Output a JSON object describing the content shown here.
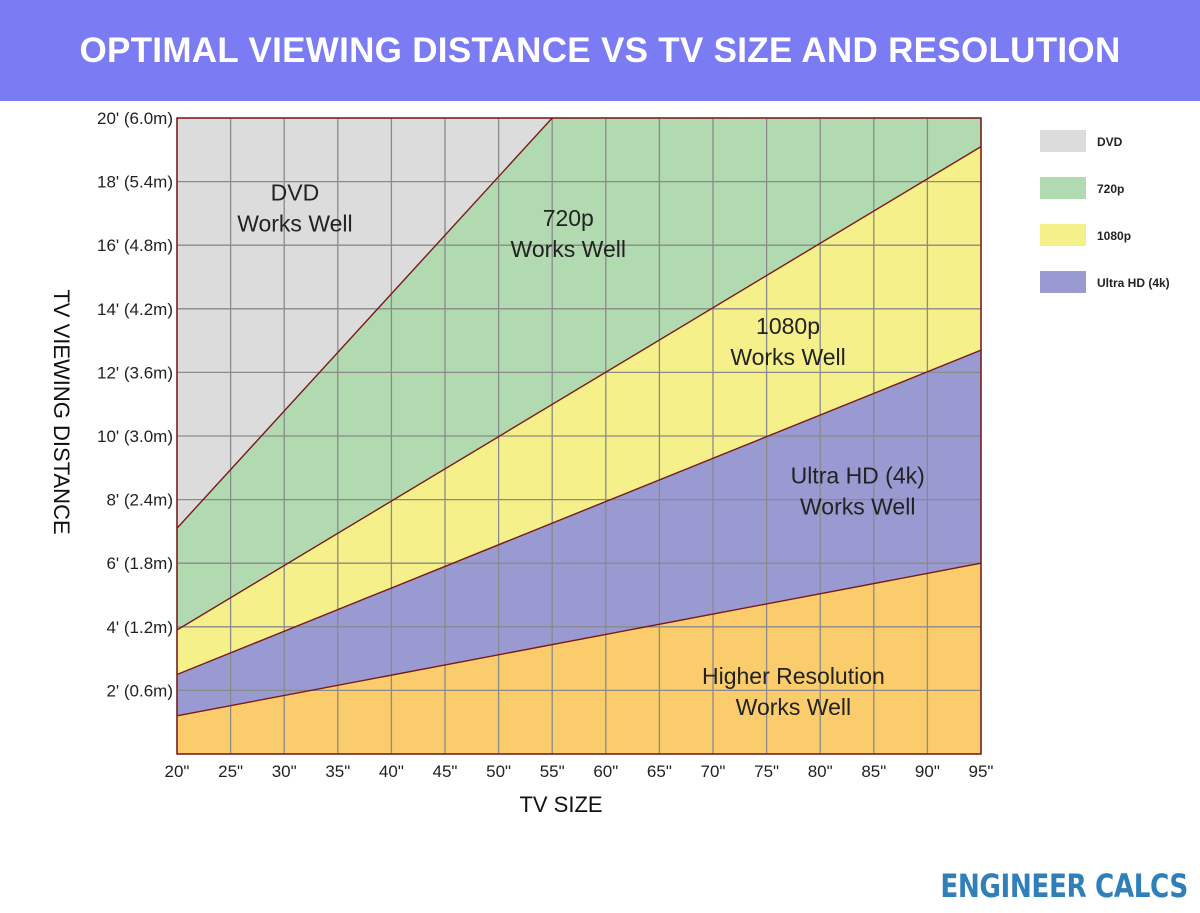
{
  "header": {
    "title": "OPTIMAL VIEWING DISTANCE VS TV SIZE AND RESOLUTION"
  },
  "brand": {
    "text": "ENGINEER CALCS",
    "color": "#2f7fb8"
  },
  "chart_data": {
    "type": "area",
    "title": "OPTIMAL VIEWING DISTANCE VS TV SIZE AND RESOLUTION",
    "xlabel": "TV SIZE",
    "ylabel": "TV VIEWING DISTANCE",
    "x_unit": "inches",
    "y_unit": "feet",
    "xlim": [
      20,
      95
    ],
    "ylim": [
      0,
      20
    ],
    "grid": true,
    "legend_position": "right",
    "x_ticks": [
      20,
      25,
      30,
      35,
      40,
      45,
      50,
      55,
      60,
      65,
      70,
      75,
      80,
      85,
      90,
      95
    ],
    "x_tick_labels": [
      "20\"",
      "25\"",
      "30\"",
      "35\"",
      "40\"",
      "45\"",
      "50\"",
      "55\"",
      "60\"",
      "65\"",
      "70\"",
      "75\"",
      "80\"",
      "85\"",
      "90\"",
      "95\""
    ],
    "y_ticks": [
      2,
      4,
      6,
      8,
      10,
      12,
      14,
      16,
      18,
      20
    ],
    "y_tick_labels": [
      "2' (0.6m)",
      "4' (1.2m)",
      "6' (1.8m)",
      "8' (2.4m)",
      "10' (3.0m)",
      "12' (3.6m)",
      "14' (4.2m)",
      "16' (4.8m)",
      "18' (5.4m)",
      "20' (6.0m)"
    ],
    "boundaries": [
      {
        "name": "Ultra HD (4k)",
        "x": [
          20,
          95
        ],
        "y": [
          1.2,
          6.0
        ]
      },
      {
        "name": "1080p",
        "x": [
          20,
          95
        ],
        "y": [
          2.5,
          12.7
        ]
      },
      {
        "name": "720p",
        "x": [
          20,
          95
        ],
        "y": [
          3.9,
          19.1
        ]
      },
      {
        "name": "DVD",
        "x": [
          20,
          55
        ],
        "y": [
          7.1,
          20
        ]
      }
    ],
    "regions": [
      {
        "key": "higher",
        "label_lines": [
          "Higher Resolution",
          "Works Well"
        ],
        "color": "#fbcc6c",
        "label_x": 77.5,
        "label_y": 2.2
      },
      {
        "key": "uhd",
        "legend": "Ultra HD (4k)",
        "label_lines": [
          "Ultra HD (4k)",
          "Works Well"
        ],
        "color": "#9a9ad2",
        "label_x": 83.5,
        "label_y": 8.5
      },
      {
        "key": "p1080",
        "legend": "1080p",
        "label_lines": [
          "1080p",
          "Works Well"
        ],
        "color": "#f5f08a",
        "label_x": 77,
        "label_y": 13.2
      },
      {
        "key": "p720",
        "legend": "720p",
        "label_lines": [
          "720p",
          "Works Well"
        ],
        "color": "#b2dab0",
        "label_x": 56.5,
        "label_y": 16.6
      },
      {
        "key": "dvd",
        "legend": "DVD",
        "label_lines": [
          "DVD",
          "Works Well"
        ],
        "color": "#dcdcdc",
        "label_x": 31,
        "label_y": 17.4
      }
    ],
    "legend": [
      {
        "label": "DVD",
        "color": "#dcdcdc"
      },
      {
        "label": "720p",
        "color": "#b2dab0"
      },
      {
        "label": "1080p",
        "color": "#f5f08a"
      },
      {
        "label": "Ultra HD (4k)",
        "color": "#9a9ad2"
      }
    ],
    "grid_color": "#8a8a8a",
    "line_color": "#7a1a1a"
  }
}
